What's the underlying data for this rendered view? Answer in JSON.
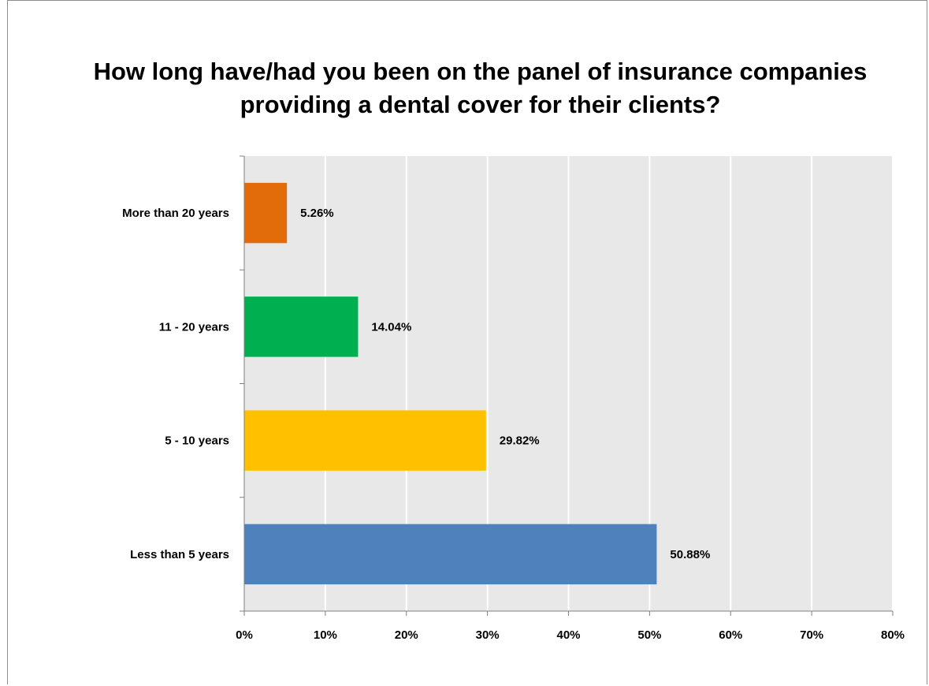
{
  "chart_data": {
    "type": "bar",
    "orientation": "horizontal",
    "title": "How long have/had you been on the panel of insurance companies providing a dental cover for their clients?",
    "title_lines": [
      "How long have/had you been on the panel of insurance companies",
      "providing a dental cover for their clients?"
    ],
    "categories": [
      "More than 20 years",
      "11 - 20 years",
      "5 - 10 years",
      "Less than 5 years"
    ],
    "values": [
      5.26,
      14.04,
      29.82,
      50.88
    ],
    "data_labels": [
      "5.26%",
      "14.04%",
      "29.82%",
      "50.88%"
    ],
    "colors": [
      "#E36C0A",
      "#00B050",
      "#FFC000",
      "#4F81BD"
    ],
    "xlim": [
      0,
      80
    ],
    "xticks": [
      0,
      10,
      20,
      30,
      40,
      50,
      60,
      70,
      80
    ],
    "xtick_labels": [
      "0%",
      "10%",
      "20%",
      "30%",
      "40%",
      "50%",
      "60%",
      "70%",
      "80%"
    ],
    "grid": true,
    "plot_background": "#E8E8E8",
    "legend": "none",
    "xlabel": "",
    "ylabel": ""
  }
}
